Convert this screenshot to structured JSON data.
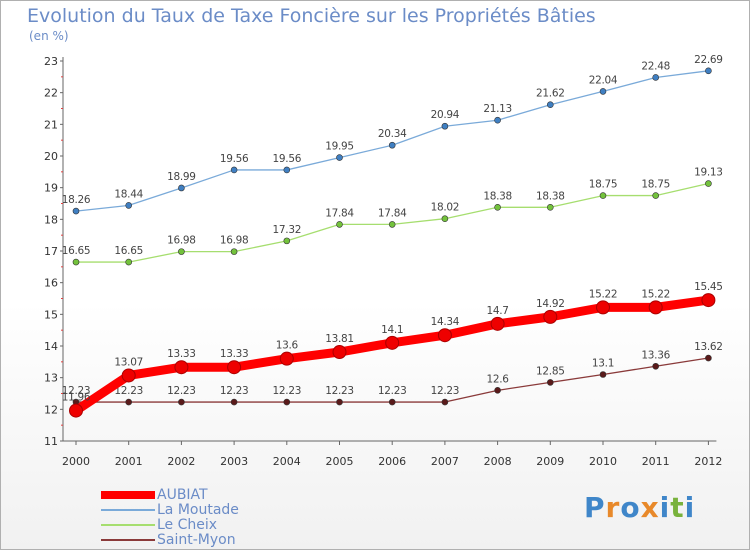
{
  "title": "Evolution du Taux de Taxe Foncière sur les Propriétés Bâties",
  "subtitle": "(en %)",
  "logo": {
    "text": "Proxiti",
    "colors": [
      "#3f86c9",
      "#e8892a",
      "#3f86c9",
      "#e8892a",
      "#3f86c9",
      "#79b23c",
      "#3f86c9"
    ]
  },
  "chart_data": {
    "type": "line",
    "title": "Evolution du Taux de Taxe Foncière sur les Propriétés Bâties",
    "ylabel": "(en %)",
    "x": [
      "2000",
      "2001",
      "2002",
      "2003",
      "2004",
      "2005",
      "2006",
      "2007",
      "2008",
      "2009",
      "2010",
      "2011",
      "2012"
    ],
    "ylim": [
      11,
      23
    ],
    "yticks": [
      "11",
      "12",
      "13",
      "14",
      "15",
      "16",
      "17",
      "18",
      "19",
      "20",
      "21",
      "22",
      "23"
    ],
    "legend_position": "bottom-left",
    "series": [
      {
        "name": "AUBIAT",
        "color": "#ff0000",
        "marker": "#cc0000",
        "values": [
          11.96,
          13.07,
          13.33,
          13.33,
          13.6,
          13.81,
          14.1,
          14.34,
          14.7,
          14.92,
          15.22,
          15.22,
          15.45
        ],
        "labels": [
          "11.96",
          "13.07",
          "13.33",
          "13.33",
          "13.6",
          "13.81",
          "14.1",
          "14.34",
          "14.7",
          "14.92",
          "15.22",
          "15.22",
          "15.45"
        ]
      },
      {
        "name": "La Moutade",
        "color": "#7aaad9",
        "marker": "#3f7fc2",
        "values": [
          18.26,
          18.44,
          18.99,
          19.56,
          19.56,
          19.95,
          20.34,
          20.94,
          21.13,
          21.62,
          22.04,
          22.48,
          22.69
        ],
        "labels": [
          "18.26",
          "18.44",
          "18.99",
          "19.56",
          "19.56",
          "19.95",
          "20.34",
          "20.94",
          "21.13",
          "21.62",
          "22.04",
          "22.48",
          "22.69"
        ]
      },
      {
        "name": "Le Cheix",
        "color": "#a6de6f",
        "marker": "#73c23c",
        "values": [
          16.65,
          16.65,
          16.98,
          16.98,
          17.32,
          17.84,
          17.84,
          18.02,
          18.38,
          18.38,
          18.75,
          18.75,
          19.13
        ],
        "labels": [
          "16.65",
          "16.65",
          "16.98",
          "16.98",
          "17.32",
          "17.84",
          "17.84",
          "18.02",
          "18.38",
          "18.38",
          "18.75",
          "18.75",
          "19.13"
        ]
      },
      {
        "name": "Saint-Myon",
        "color": "#8a3a3a",
        "marker": "#5a1a1a",
        "values": [
          12.23,
          12.23,
          12.23,
          12.23,
          12.23,
          12.23,
          12.23,
          12.23,
          12.6,
          12.85,
          13.1,
          13.36,
          13.62
        ],
        "labels": [
          "12.23",
          "12.23",
          "12.23",
          "12.23",
          "12.23",
          "12.23",
          "12.23",
          "12.23",
          "12.6",
          "12.85",
          "13.1",
          "13.36",
          "13.62"
        ]
      }
    ]
  }
}
